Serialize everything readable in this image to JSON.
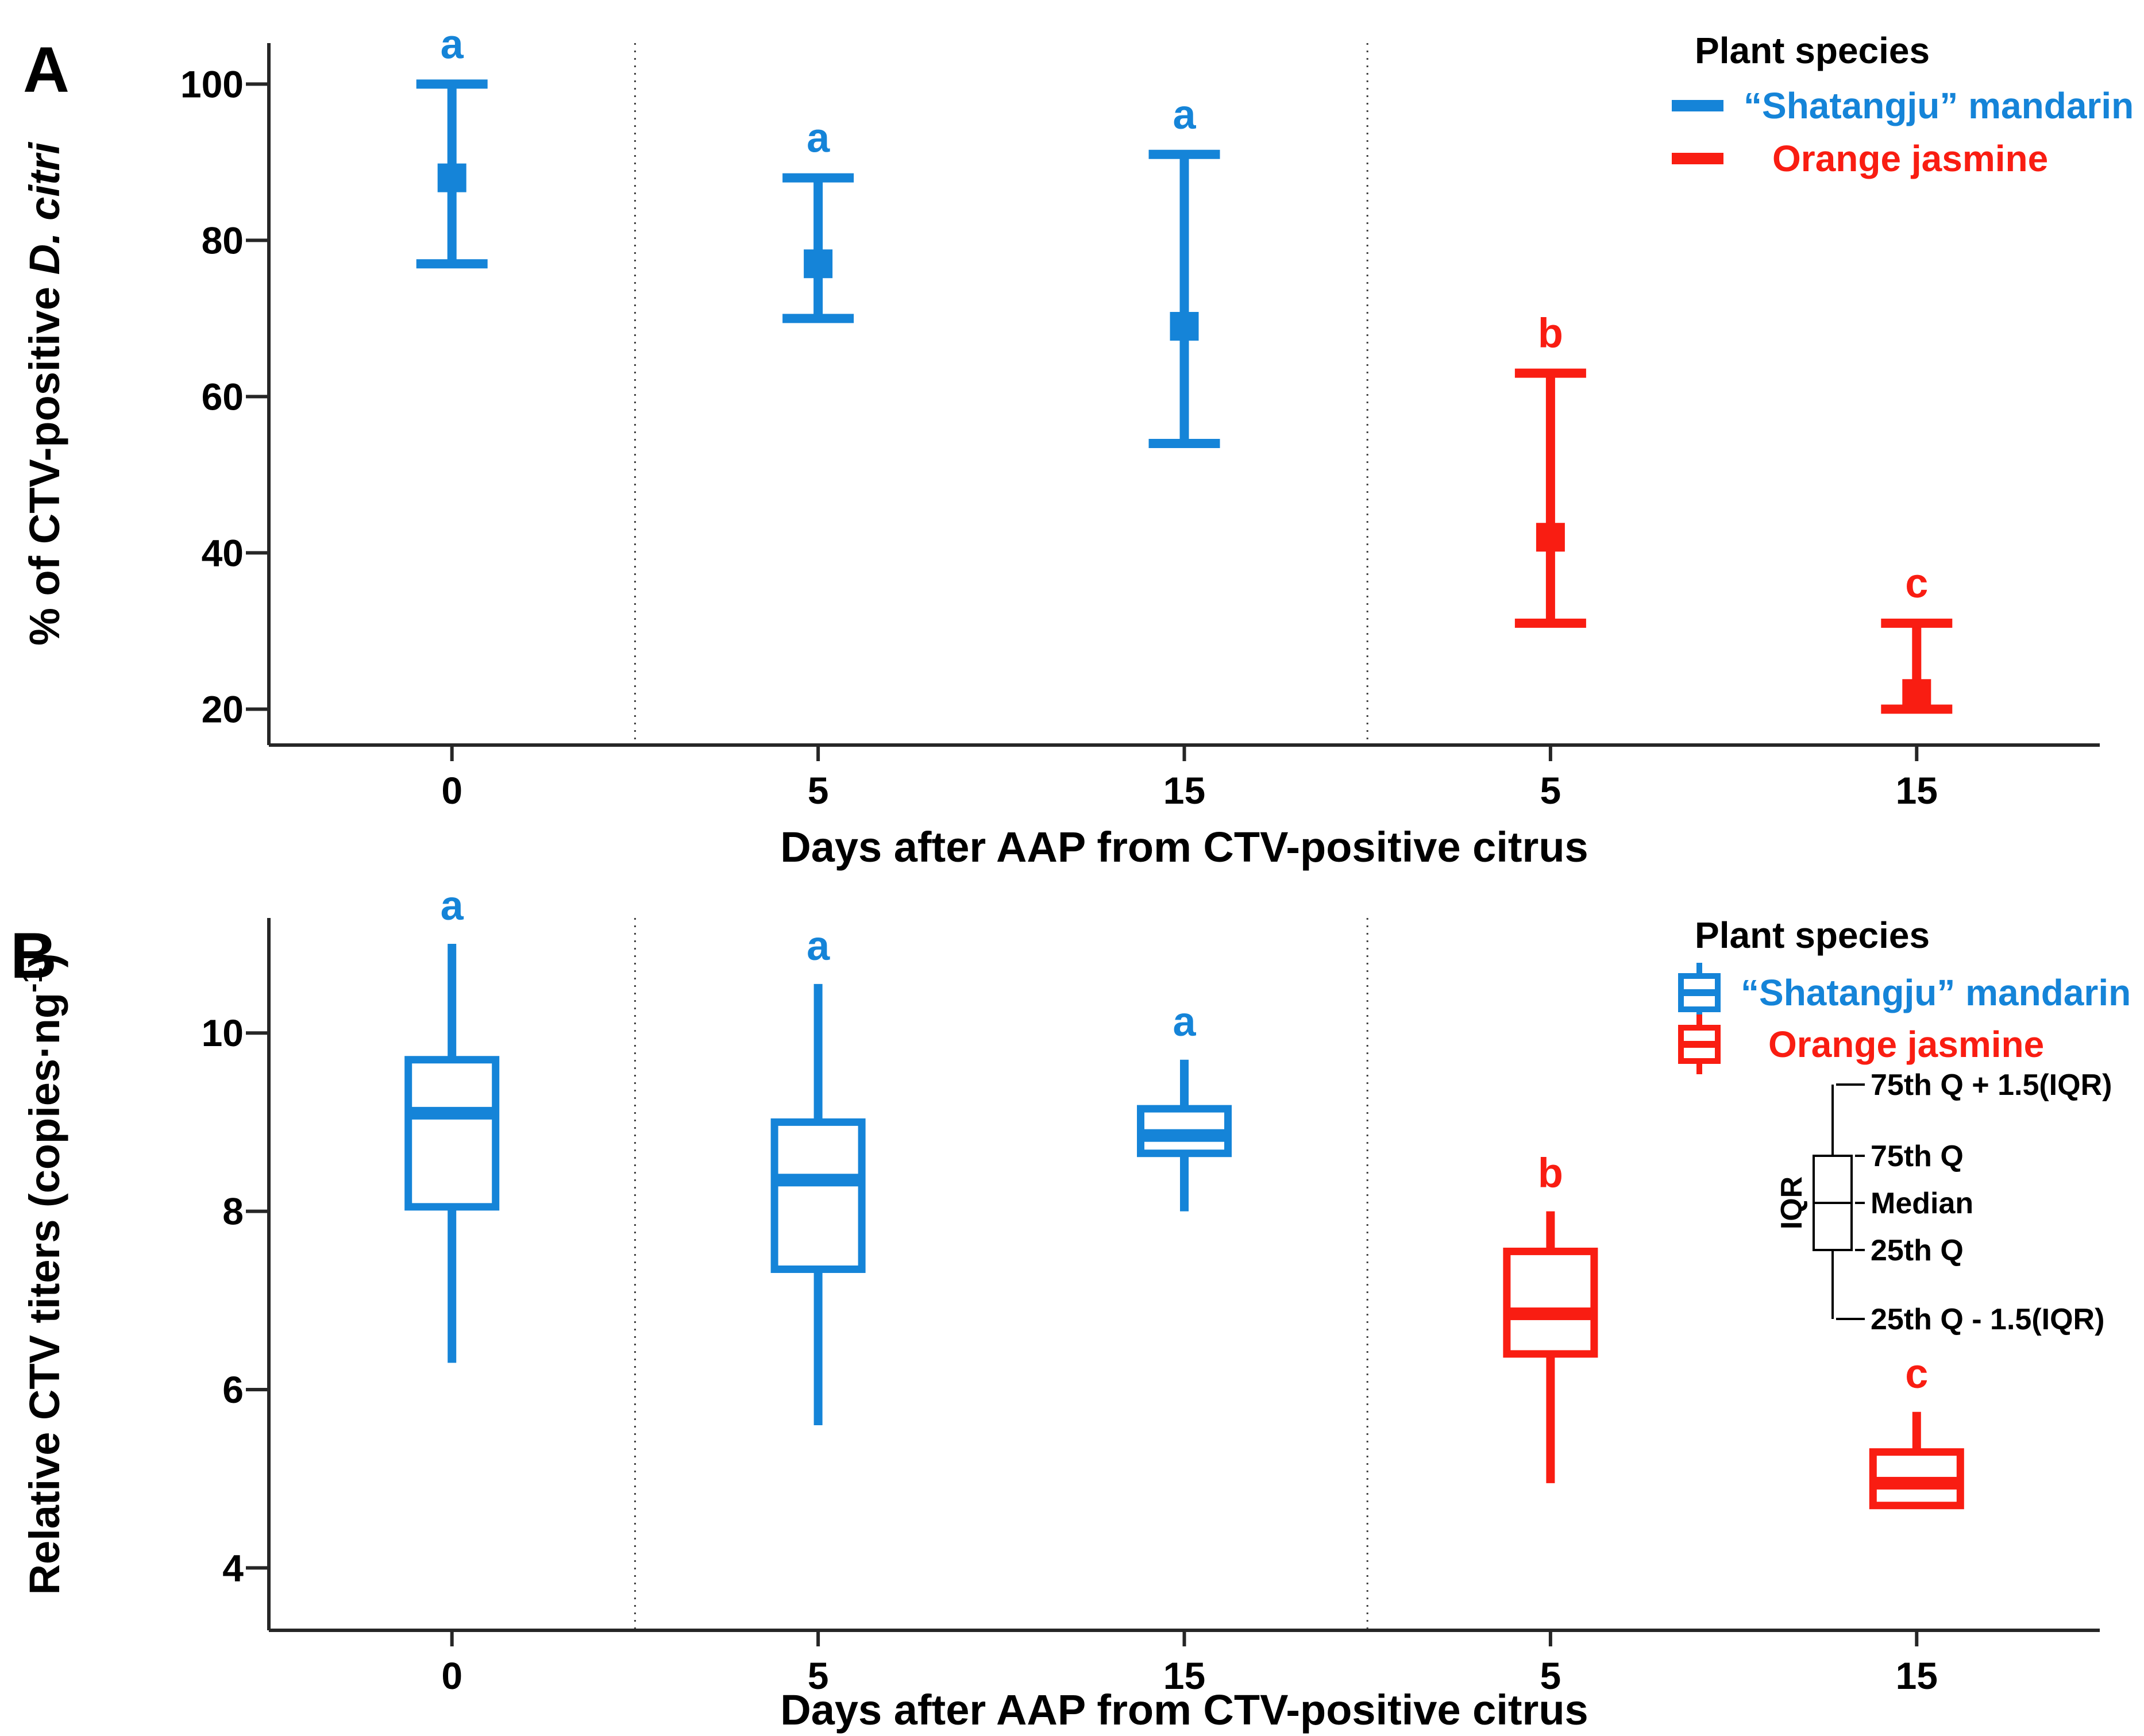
{
  "colors": {
    "mandarin_blue": "#1584d8",
    "jasmine_red": "#f91d12",
    "axis_black": "#262626",
    "divider_gray": "#3c3c3c",
    "text_black": "#000000"
  },
  "chart_data": [
    {
      "id": "A",
      "panel_label": "A",
      "type": "errorbar",
      "y_axis": {
        "label_parts": [
          {
            "text": "% of CTV-positive "
          },
          {
            "text": "D. citri",
            "italic": true
          }
        ],
        "ticks": [
          20,
          40,
          60,
          80,
          100
        ],
        "range": [
          15.4,
          105.25
        ],
        "grid": false
      },
      "x_axis": {
        "label": "Days after AAP from CTV-positive citrus",
        "categories": [
          "0",
          "5",
          "15",
          "5",
          "15"
        ],
        "divider_boundaries": [
          1,
          3
        ]
      },
      "legend": {
        "title": "Plant species",
        "position": "top-right",
        "items": [
          {
            "series": "mandarin",
            "label": "“Shatangju” mandarin"
          },
          {
            "series": "jasmine",
            "label": "Orange jasmine"
          }
        ]
      },
      "points": [
        {
          "series": "mandarin",
          "category_slot": 0,
          "mean": 88,
          "ci_low": 77,
          "ci_high": 100,
          "letter": "a"
        },
        {
          "series": "mandarin",
          "category_slot": 1,
          "mean": 77,
          "ci_low": 70,
          "ci_high": 88,
          "letter": "a"
        },
        {
          "series": "mandarin",
          "category_slot": 2,
          "mean": 69,
          "ci_low": 54,
          "ci_high": 91,
          "letter": "a"
        },
        {
          "series": "jasmine",
          "category_slot": 3,
          "mean": 42,
          "ci_low": 31,
          "ci_high": 63,
          "letter": "b"
        },
        {
          "series": "jasmine",
          "category_slot": 4,
          "mean": 22,
          "ci_low": 20,
          "ci_high": 31,
          "letter": "c"
        }
      ]
    },
    {
      "id": "B",
      "panel_label": "B",
      "type": "boxplot",
      "y_axis": {
        "label_parts": [
          {
            "text": "Relative CTV titers (copies·ng"
          },
          {
            "text": "-1",
            "sup": true
          },
          {
            "text": ")"
          }
        ],
        "ticks": [
          4,
          6,
          8,
          10
        ],
        "range": [
          3.3,
          11.29
        ],
        "grid": false
      },
      "x_axis": {
        "label": "Days after AAP from CTV-positive citrus",
        "categories": [
          "0",
          "5",
          "15",
          "5",
          "15"
        ],
        "divider_boundaries": [
          1,
          3
        ]
      },
      "legend": {
        "title": "Plant species",
        "position": "top-right",
        "items": [
          {
            "series": "mandarin",
            "label": "“Shatangju” mandarin"
          },
          {
            "series": "jasmine",
            "label": "Orange jasmine"
          }
        ]
      },
      "boxes": [
        {
          "series": "mandarin",
          "category_slot": 0,
          "whisker_low": 6.3,
          "q1": 8.05,
          "median": 9.1,
          "q3": 9.7,
          "whisker_high": 11.0,
          "letter": "a"
        },
        {
          "series": "mandarin",
          "category_slot": 1,
          "whisker_low": 5.6,
          "q1": 7.35,
          "median": 8.35,
          "q3": 9.0,
          "whisker_high": 10.55,
          "letter": "a"
        },
        {
          "series": "mandarin",
          "category_slot": 2,
          "whisker_low": 8.0,
          "q1": 8.65,
          "median": 8.85,
          "q3": 9.15,
          "whisker_high": 9.7,
          "letter": "a"
        },
        {
          "series": "jasmine",
          "category_slot": 3,
          "whisker_low": 4.95,
          "q1": 6.4,
          "median": 6.85,
          "q3": 7.55,
          "whisker_high": 8.0,
          "letter": "b"
        },
        {
          "series": "jasmine",
          "category_slot": 4,
          "whisker_low": null,
          "q1": 4.7,
          "median": 4.95,
          "q3": 5.3,
          "whisker_high": 5.75,
          "letter": "c"
        }
      ],
      "box_anatomy_legend": {
        "iqr_label": "IQR",
        "labels": [
          "75th Q + 1.5(IQR)",
          "75th Q",
          "Median",
          "25th Q",
          "25th Q - 1.5(IQR)"
        ]
      }
    }
  ]
}
